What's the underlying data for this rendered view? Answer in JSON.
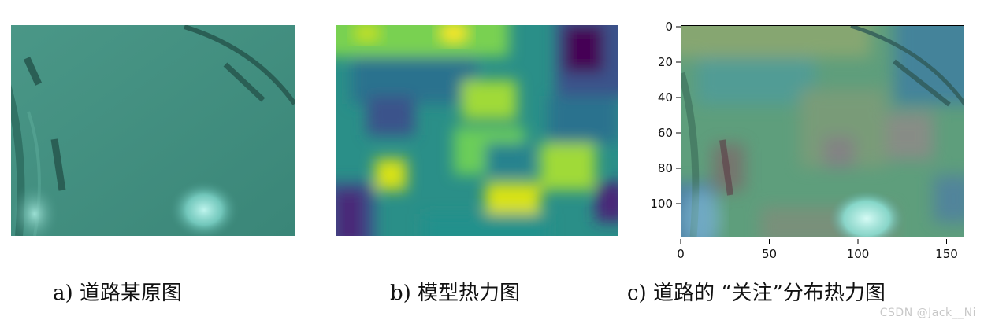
{
  "panels": {
    "a": {
      "caption": "a) 道路某原图"
    },
    "b": {
      "caption": "b) 模型热力图"
    },
    "c": {
      "caption": "c) 道路的 “关注”分布热力图",
      "y_ticks": [
        "0",
        "20",
        "40",
        "60",
        "80",
        "100"
      ],
      "x_ticks": [
        "0",
        "50",
        "100",
        "150"
      ]
    }
  },
  "watermark": "CSDN @Jack__Ni",
  "colors": {
    "road_teal": "#3f8c7e",
    "viridis_purple": "#440154",
    "viridis_teal": "#21918c",
    "viridis_green": "#5ec962",
    "viridis_yellow": "#fde725"
  }
}
